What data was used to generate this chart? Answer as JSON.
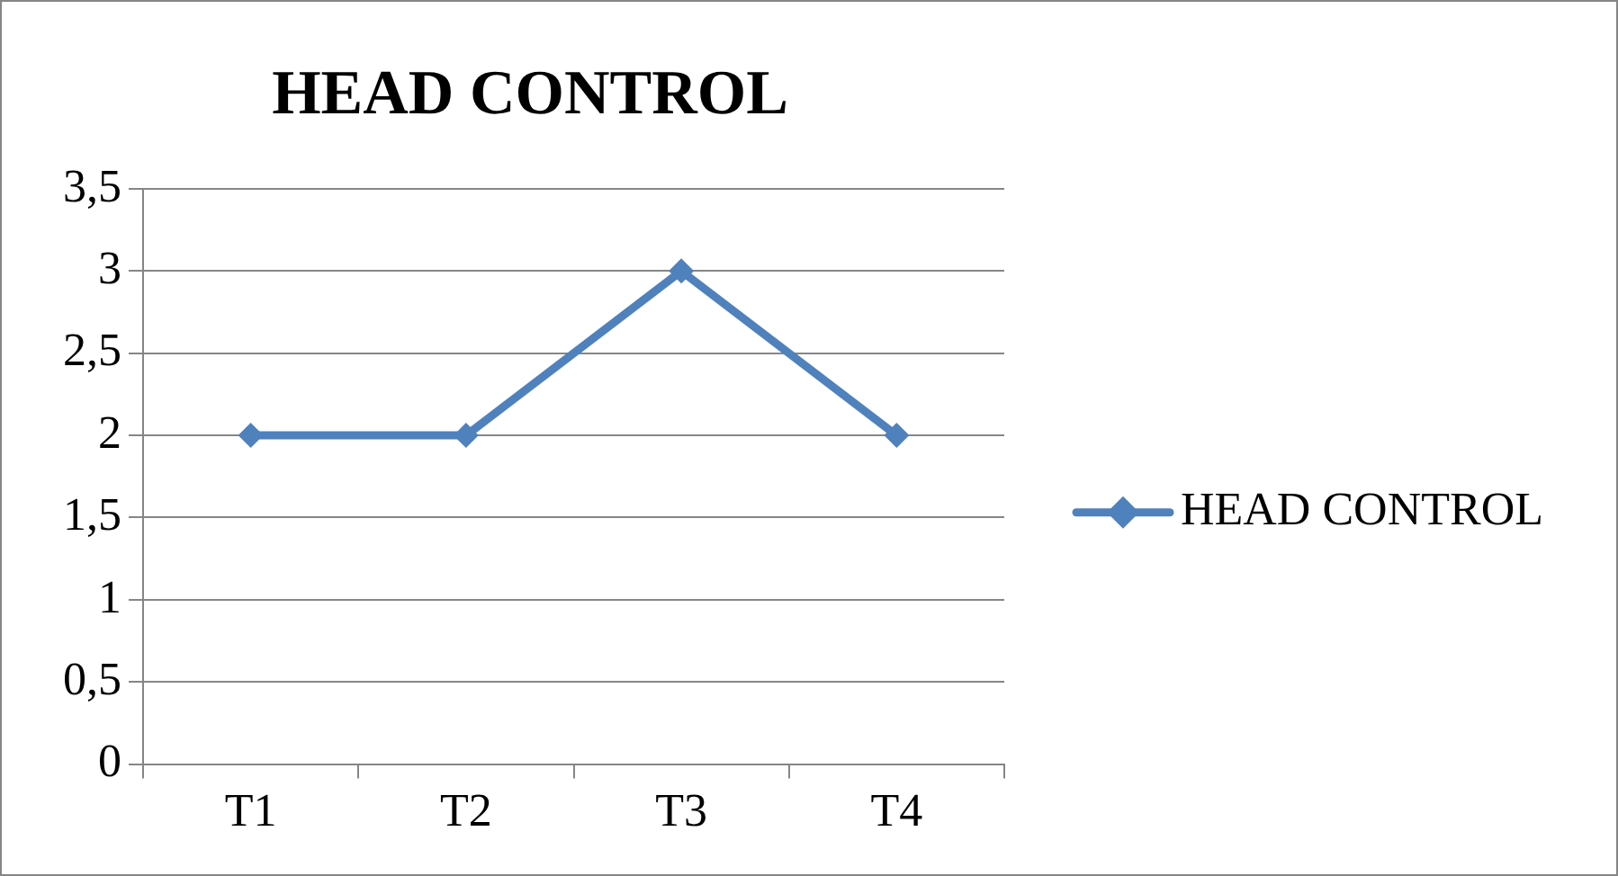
{
  "chart_data": {
    "type": "line",
    "title": "HEAD CONTROL",
    "categories": [
      "T1",
      "T2",
      "T3",
      "T4"
    ],
    "series": [
      {
        "name": "HEAD CONTROL",
        "color": "#4f81bd",
        "values": [
          2,
          2,
          3,
          2
        ]
      }
    ],
    "ylim": [
      0,
      3.5
    ],
    "yticks": [
      0,
      {
        "value": 0.5,
        "label": "0,5"
      },
      1,
      {
        "value": 1.5,
        "label": "1,5"
      },
      2,
      {
        "value": 2.5,
        "label": "2,5"
      },
      3,
      {
        "value": 3.5,
        "label": "3,5"
      }
    ],
    "grid": "y",
    "legend": "right",
    "marker": "diamond",
    "line_style": "solid"
  }
}
